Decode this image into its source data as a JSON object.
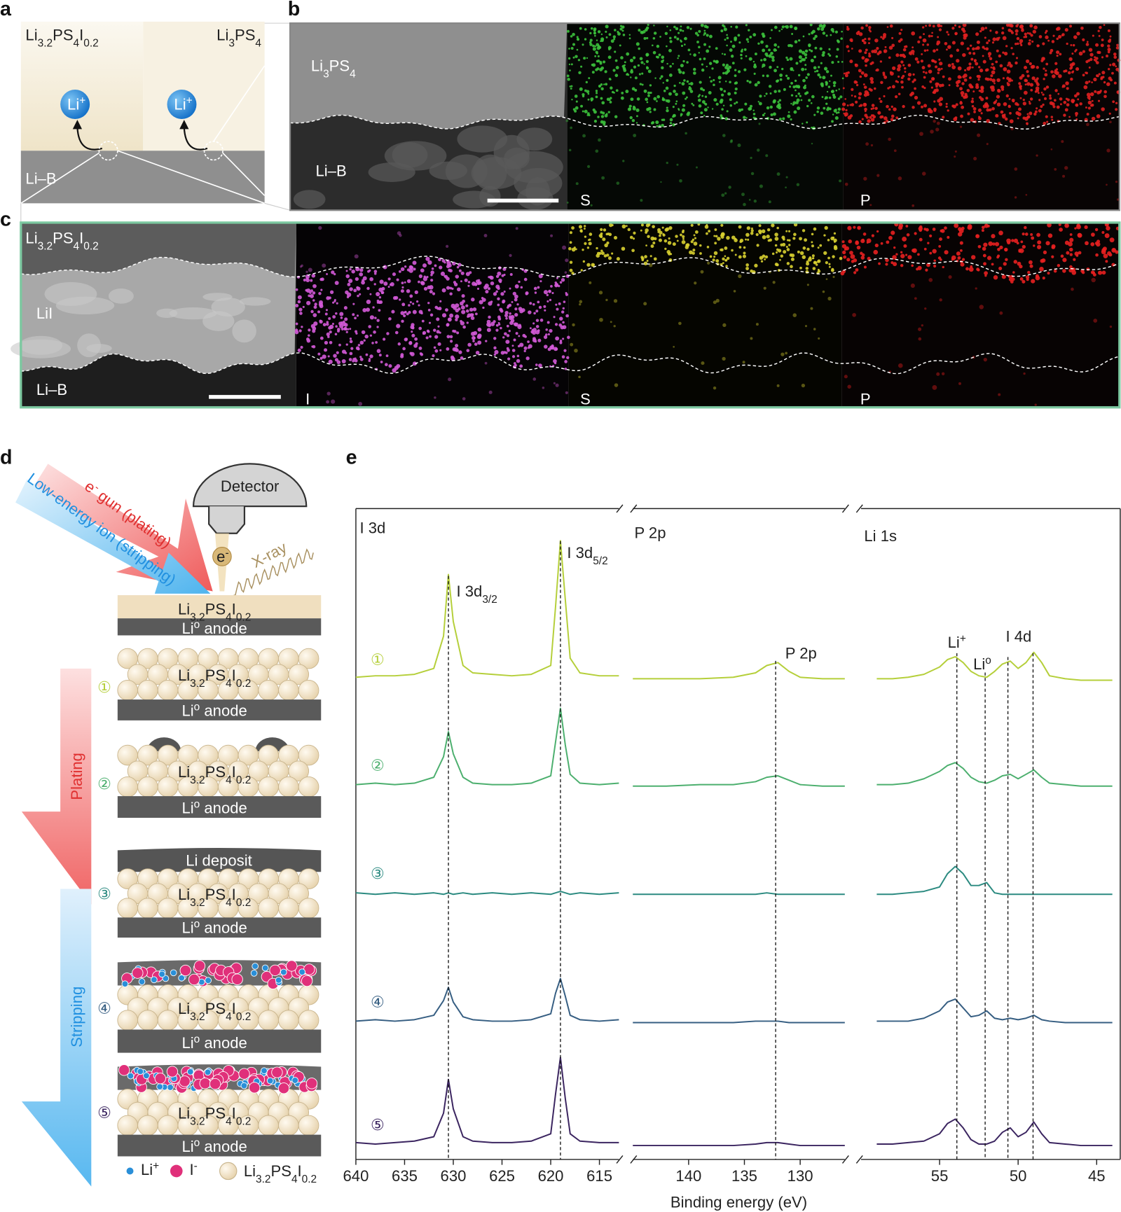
{
  "panel_labels": [
    "a",
    "b",
    "c",
    "d",
    "e"
  ],
  "formulas": {
    "lpsi": [
      "Li",
      "3.2",
      "PS",
      "4",
      "I",
      "0.2"
    ],
    "lps": [
      "Li",
      "3",
      "PS",
      "4"
    ]
  },
  "panel_a": {
    "ion": [
      "Li",
      "+"
    ],
    "substrate": "Li–B"
  },
  "panel_b": {
    "substrate": "Li–B",
    "maps": [
      "S",
      "P"
    ]
  },
  "panel_c": {
    "middle": "LiI",
    "bottom": "Li–B",
    "maps": [
      "I",
      "S",
      "P"
    ]
  },
  "panel_d": {
    "detector": "Detector",
    "e_gun": [
      "e",
      "-",
      " gun (plating)"
    ],
    "ion_beam": "Low-energy ion (stripping)",
    "electron": [
      "e",
      "-"
    ],
    "xray": "X-ray",
    "anode": [
      "Li",
      "o",
      " anode"
    ],
    "deposit": "Li deposit",
    "plating": "Plating",
    "stripping": "Stripping",
    "legend": {
      "li": [
        "Li",
        "+"
      ],
      "iodide": [
        "I",
        "-"
      ]
    }
  },
  "chart_data": {
    "type": "line",
    "x_label": "Binding energy (eV)",
    "ylim": [
      0,
      100
    ],
    "traces": [
      {
        "name": "①",
        "color": "#b5cf3a"
      },
      {
        "name": "②",
        "color": "#4caf6e"
      },
      {
        "name": "③",
        "color": "#2b8a80"
      },
      {
        "name": "④",
        "color": "#365e82"
      },
      {
        "name": "⑤",
        "color": "#3b2560"
      }
    ],
    "segments": [
      {
        "title": "I 3d",
        "xlim": [
          640,
          613
        ],
        "xticks": [
          640,
          635,
          630,
          625,
          620,
          615
        ],
        "x": [
          640,
          638,
          636,
          634,
          632,
          631,
          630.5,
          630,
          629,
          628,
          626,
          624,
          622,
          620,
          619.5,
          619,
          618.5,
          618,
          617,
          615,
          613
        ],
        "series": [
          {
            "values": [
              2,
              3,
              3,
              4,
              8,
              30,
              72,
              40,
              10,
              5,
              4,
              3,
              4,
              10,
              50,
              95,
              55,
              15,
              5,
              3,
              3
            ]
          },
          {
            "values": [
              1,
              2,
              1,
              2,
              6,
              20,
              37,
              22,
              6,
              2,
              1,
              1,
              2,
              7,
              30,
              53,
              28,
              8,
              2,
              1,
              2
            ]
          },
          {
            "values": [
              1,
              0,
              1,
              0,
              1,
              0,
              1,
              0,
              1,
              0,
              1,
              0,
              1,
              0,
              1,
              2,
              1,
              0,
              1,
              0,
              1
            ]
          },
          {
            "values": [
              1,
              2,
              1,
              2,
              5,
              15,
              24,
              14,
              4,
              2,
              1,
              1,
              2,
              6,
              20,
              30,
              18,
              5,
              2,
              1,
              2
            ]
          },
          {
            "values": [
              2,
              1,
              2,
              3,
              6,
              22,
              45,
              25,
              6,
              3,
              2,
              2,
              3,
              8,
              35,
              60,
              32,
              8,
              3,
              2,
              2
            ]
          }
        ]
      },
      {
        "title": "P 2p",
        "xlim": [
          145,
          126
        ],
        "xticks": [
          140,
          135,
          130
        ],
        "x": [
          145,
          142,
          139,
          136,
          134,
          133,
          132,
          131,
          130,
          128,
          126
        ],
        "series": [
          {
            "values": [
              1,
              1,
              1,
              2,
              5,
              10,
              12,
              6,
              2,
              1,
              1
            ]
          },
          {
            "values": [
              0,
              0,
              1,
              1,
              3,
              6,
              7,
              4,
              1,
              0,
              0
            ]
          },
          {
            "values": [
              0,
              0,
              0,
              0,
              0,
              1,
              0,
              0,
              0,
              0,
              0
            ]
          },
          {
            "values": [
              0,
              0,
              0,
              0,
              1,
              1,
              1,
              0,
              0,
              0,
              0
            ]
          },
          {
            "values": [
              0,
              0,
              0,
              0,
              1,
              2,
              2,
              1,
              0,
              0,
              0
            ]
          }
        ]
      },
      {
        "title": "Li 1s",
        "xlim": [
          60,
          43.5
        ],
        "xticks": [
          55,
          50,
          45
        ],
        "x": [
          59,
          58,
          57,
          56,
          55,
          54.5,
          54,
          53.5,
          53,
          52.5,
          52,
          51.5,
          51,
          50.5,
          50,
          49.5,
          49,
          48.5,
          48,
          47,
          46,
          45,
          44
        ],
        "series": [
          {
            "values": [
              1,
              1,
              2,
              4,
              9,
              14,
              16,
              12,
              6,
              3,
              2,
              6,
              11,
              13,
              8,
              12,
              19,
              12,
              3,
              1,
              0,
              0,
              0
            ]
          },
          {
            "values": [
              1,
              1,
              2,
              5,
              10,
              14,
              16,
              12,
              6,
              3,
              2,
              4,
              7,
              8,
              5,
              8,
              11,
              6,
              2,
              1,
              0,
              0,
              0
            ]
          },
          {
            "values": [
              0,
              0,
              1,
              2,
              5,
              14,
              19,
              14,
              6,
              6,
              8,
              1,
              0,
              0,
              0,
              0,
              0,
              0,
              0,
              0,
              0,
              0,
              0
            ]
          },
          {
            "values": [
              1,
              1,
              1,
              3,
              8,
              14,
              16,
              10,
              4,
              5,
              8,
              3,
              2,
              3,
              2,
              3,
              5,
              2,
              1,
              0,
              0,
              0,
              0
            ]
          },
          {
            "values": [
              1,
              1,
              2,
              3,
              8,
              15,
              18,
              12,
              4,
              1,
              1,
              3,
              9,
              12,
              6,
              9,
              16,
              8,
              2,
              1,
              0,
              0,
              0
            ]
          }
        ]
      }
    ],
    "reference_lines": [
      630.5,
      619,
      132.2,
      53.9,
      52.1,
      50.65,
      49.05
    ],
    "peak_labels": [
      {
        "parts": [
          "I 3d",
          "3/2"
        ],
        "script": "sub"
      },
      {
        "parts": [
          "I 3d",
          "5/2"
        ],
        "script": "sub"
      },
      {
        "parts": [
          "P 2p"
        ],
        "script": "sub"
      },
      {
        "parts": [
          "Li",
          "+"
        ],
        "script": "super"
      },
      {
        "parts": [
          "Li",
          "o"
        ],
        "script": "super"
      },
      {
        "parts": [
          "I 4d"
        ],
        "script": "sub"
      }
    ]
  }
}
